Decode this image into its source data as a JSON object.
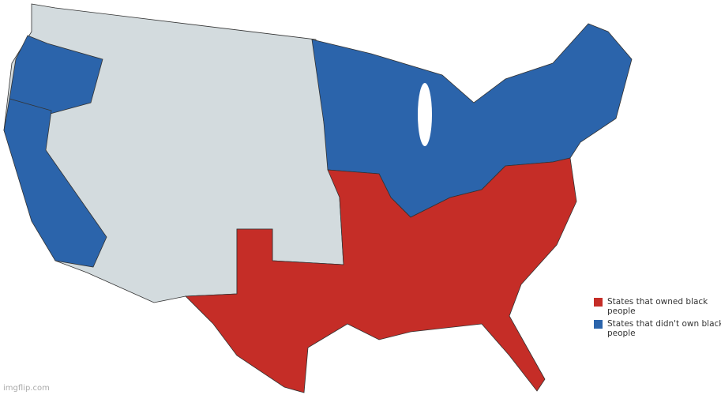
{
  "colors": {
    "slave": "#c52d27",
    "free": "#2b64ab",
    "territory": "#d3dbde",
    "border": "#333333"
  },
  "legend": [
    {
      "label": "States that owned black people",
      "color": "#c52d27"
    },
    {
      "label": "States that didn't own black people",
      "color": "#2b64ab"
    }
  ],
  "watermark": "imgflip.com"
}
